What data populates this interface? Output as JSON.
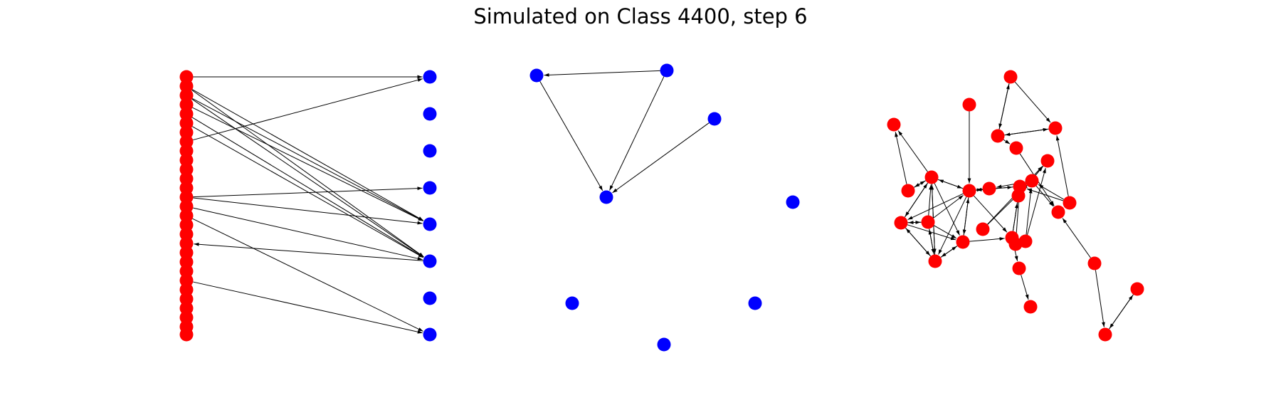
{
  "title": "Simulated on Class 4400, step 6",
  "colors": {
    "red": "#ff0000",
    "blue": "#0000ff",
    "edge": "#000000"
  },
  "panels": [
    {
      "name": "bipartite-graph",
      "nodes": [
        {
          "id": "L0",
          "p": [
            262,
            108
          ],
          "c": "red"
        },
        {
          "id": "L1",
          "p": [
            262,
            121
          ],
          "c": "red"
        },
        {
          "id": "L2",
          "p": [
            262,
            134
          ],
          "c": "red"
        },
        {
          "id": "L3",
          "p": [
            262,
            147
          ],
          "c": "red"
        },
        {
          "id": "L4",
          "p": [
            262,
            160
          ],
          "c": "red"
        },
        {
          "id": "L5",
          "p": [
            262,
            173
          ],
          "c": "red"
        },
        {
          "id": "L6",
          "p": [
            262,
            186
          ],
          "c": "red"
        },
        {
          "id": "L7",
          "p": [
            262,
            199
          ],
          "c": "red"
        },
        {
          "id": "L8",
          "p": [
            262,
            212
          ],
          "c": "red"
        },
        {
          "id": "L9",
          "p": [
            262,
            225
          ],
          "c": "red"
        },
        {
          "id": "L10",
          "p": [
            262,
            238
          ],
          "c": "red"
        },
        {
          "id": "L11",
          "p": [
            262,
            251
          ],
          "c": "red"
        },
        {
          "id": "L12",
          "p": [
            262,
            264
          ],
          "c": "red"
        },
        {
          "id": "L13",
          "p": [
            262,
            277
          ],
          "c": "red"
        },
        {
          "id": "L14",
          "p": [
            262,
            290
          ],
          "c": "red"
        },
        {
          "id": "L15",
          "p": [
            262,
            303
          ],
          "c": "red"
        },
        {
          "id": "L16",
          "p": [
            262,
            316
          ],
          "c": "red"
        },
        {
          "id": "L17",
          "p": [
            262,
            329
          ],
          "c": "red"
        },
        {
          "id": "L18",
          "p": [
            262,
            342
          ],
          "c": "red"
        },
        {
          "id": "L19",
          "p": [
            262,
            355
          ],
          "c": "red"
        },
        {
          "id": "L20",
          "p": [
            262,
            368
          ],
          "c": "red"
        },
        {
          "id": "L21",
          "p": [
            262,
            381
          ],
          "c": "red"
        },
        {
          "id": "L22",
          "p": [
            262,
            394
          ],
          "c": "red"
        },
        {
          "id": "L23",
          "p": [
            262,
            407
          ],
          "c": "red"
        },
        {
          "id": "L24",
          "p": [
            262,
            420
          ],
          "c": "red"
        },
        {
          "id": "L25",
          "p": [
            262,
            433
          ],
          "c": "red"
        },
        {
          "id": "L26",
          "p": [
            262,
            446
          ],
          "c": "red"
        },
        {
          "id": "L27",
          "p": [
            262,
            459
          ],
          "c": "red"
        },
        {
          "id": "L28",
          "p": [
            262,
            470
          ],
          "c": "red"
        },
        {
          "id": "R0",
          "p": [
            604,
            108
          ],
          "c": "blue"
        },
        {
          "id": "R1",
          "p": [
            604,
            160
          ],
          "c": "blue"
        },
        {
          "id": "R2",
          "p": [
            604,
            212
          ],
          "c": "blue"
        },
        {
          "id": "R3",
          "p": [
            604,
            264
          ],
          "c": "blue"
        },
        {
          "id": "R4",
          "p": [
            604,
            315
          ],
          "c": "blue"
        },
        {
          "id": "R5",
          "p": [
            604,
            367
          ],
          "c": "blue"
        },
        {
          "id": "R6",
          "p": [
            604,
            419
          ],
          "c": "blue"
        },
        {
          "id": "R7",
          "p": [
            604,
            470
          ],
          "c": "blue"
        }
      ],
      "edges": [
        [
          "L0",
          "R0"
        ],
        [
          "L7",
          "R0"
        ],
        [
          "L1",
          "R4"
        ],
        [
          "L2",
          "R4"
        ],
        [
          "L3",
          "R4"
        ],
        [
          "L1",
          "R5"
        ],
        [
          "L2",
          "R5"
        ],
        [
          "L4",
          "R5"
        ],
        [
          "L5",
          "R5"
        ],
        [
          "L13",
          "R3"
        ],
        [
          "L13",
          "R4"
        ],
        [
          "L14",
          "R5"
        ],
        [
          "L15",
          "R7"
        ],
        [
          "R5",
          "L18"
        ],
        [
          "L22",
          "R7"
        ]
      ]
    },
    {
      "name": "blue-graph",
      "nodes": [
        {
          "id": "B0",
          "p": [
            754,
            106
          ],
          "c": "blue"
        },
        {
          "id": "B1",
          "p": [
            937,
            99
          ],
          "c": "blue"
        },
        {
          "id": "B2",
          "p": [
            1004,
            167
          ],
          "c": "blue"
        },
        {
          "id": "B3",
          "p": [
            852,
            277
          ],
          "c": "blue"
        },
        {
          "id": "B4",
          "p": [
            1114,
            284
          ],
          "c": "blue"
        },
        {
          "id": "B5",
          "p": [
            804,
            426
          ],
          "c": "blue"
        },
        {
          "id": "B6",
          "p": [
            1061,
            426
          ],
          "c": "blue"
        },
        {
          "id": "B7",
          "p": [
            933,
            484
          ],
          "c": "blue"
        }
      ],
      "edges": [
        [
          "B1",
          "B0"
        ],
        [
          "B0",
          "B3"
        ],
        [
          "B1",
          "B3"
        ],
        [
          "B2",
          "B3"
        ]
      ]
    },
    {
      "name": "red-graph",
      "nodes": [
        {
          "id": "N0",
          "p": [
            1420,
            108
          ],
          "c": "red"
        },
        {
          "id": "N1",
          "p": [
            1362,
            147
          ],
          "c": "red"
        },
        {
          "id": "N2",
          "p": [
            1483,
            180
          ],
          "c": "red"
        },
        {
          "id": "N3",
          "p": [
            1256,
            175
          ],
          "c": "red"
        },
        {
          "id": "N4",
          "p": [
            1402,
            191
          ],
          "c": "red"
        },
        {
          "id": "N5",
          "p": [
            1428,
            208
          ],
          "c": "red"
        },
        {
          "id": "N6",
          "p": [
            1472,
            226
          ],
          "c": "red"
        },
        {
          "id": "N7",
          "p": [
            1309,
            249
          ],
          "c": "red"
        },
        {
          "id": "N8",
          "p": [
            1450,
            254
          ],
          "c": "red"
        },
        {
          "id": "N9",
          "p": [
            1276,
            268
          ],
          "c": "red"
        },
        {
          "id": "N10",
          "p": [
            1362,
            268
          ],
          "c": "red"
        },
        {
          "id": "N11",
          "p": [
            1390,
            265
          ],
          "c": "red"
        },
        {
          "id": "N12",
          "p": [
            1433,
            262
          ],
          "c": "red"
        },
        {
          "id": "N13",
          "p": [
            1431,
            275
          ],
          "c": "red"
        },
        {
          "id": "N14",
          "p": [
            1503,
            285
          ],
          "c": "red"
        },
        {
          "id": "N15",
          "p": [
            1487,
            298
          ],
          "c": "red"
        },
        {
          "id": "N16",
          "p": [
            1266,
            313
          ],
          "c": "red"
        },
        {
          "id": "N17",
          "p": [
            1304,
            312
          ],
          "c": "red"
        },
        {
          "id": "N18",
          "p": [
            1381,
            322
          ],
          "c": "red"
        },
        {
          "id": "N19",
          "p": [
            1422,
            334
          ],
          "c": "red"
        },
        {
          "id": "N20",
          "p": [
            1353,
            340
          ],
          "c": "red"
        },
        {
          "id": "N21",
          "p": [
            1427,
            343
          ],
          "c": "red"
        },
        {
          "id": "N22",
          "p": [
            1441,
            339
          ],
          "c": "red"
        },
        {
          "id": "N23",
          "p": [
            1314,
            367
          ],
          "c": "red"
        },
        {
          "id": "N24",
          "p": [
            1432,
            377
          ],
          "c": "red"
        },
        {
          "id": "N25",
          "p": [
            1538,
            370
          ],
          "c": "red"
        },
        {
          "id": "N26",
          "p": [
            1598,
            406
          ],
          "c": "red"
        },
        {
          "id": "N27",
          "p": [
            1448,
            431
          ],
          "c": "red"
        },
        {
          "id": "N28",
          "p": [
            1553,
            470
          ],
          "c": "red"
        }
      ],
      "edges": [
        [
          "N0",
          "N2"
        ],
        [
          "N0",
          "N4"
        ],
        [
          "N4",
          "N0"
        ],
        [
          "N4",
          "N2"
        ],
        [
          "N2",
          "N4"
        ],
        [
          "N1",
          "N10"
        ],
        [
          "N7",
          "N3"
        ],
        [
          "N8",
          "N15"
        ],
        [
          "N6",
          "N13"
        ],
        [
          "N13",
          "N6"
        ],
        [
          "N11",
          "N10"
        ],
        [
          "N10",
          "N11"
        ],
        [
          "N10",
          "N12"
        ],
        [
          "N12",
          "N10"
        ],
        [
          "N7",
          "N9"
        ],
        [
          "N9",
          "N7"
        ],
        [
          "N7",
          "N16"
        ],
        [
          "N16",
          "N7"
        ],
        [
          "N7",
          "N23"
        ],
        [
          "N23",
          "N7"
        ],
        [
          "N7",
          "N20"
        ],
        [
          "N7",
          "N10"
        ],
        [
          "N10",
          "N7"
        ],
        [
          "N17",
          "N7"
        ],
        [
          "N16",
          "N17"
        ],
        [
          "N17",
          "N16"
        ],
        [
          "N16",
          "N23"
        ],
        [
          "N23",
          "N16"
        ],
        [
          "N16",
          "N20"
        ],
        [
          "N17",
          "N20"
        ],
        [
          "N17",
          "N23"
        ],
        [
          "N23",
          "N17"
        ],
        [
          "N23",
          "N20"
        ],
        [
          "N20",
          "N23"
        ],
        [
          "N20",
          "N10"
        ],
        [
          "N10",
          "N20"
        ],
        [
          "N10",
          "N16"
        ],
        [
          "N10",
          "N23"
        ],
        [
          "N17",
          "N10"
        ],
        [
          "N18",
          "N6"
        ],
        [
          "N18",
          "N8"
        ],
        [
          "N19",
          "N12"
        ],
        [
          "N21",
          "N12"
        ],
        [
          "N22",
          "N8"
        ],
        [
          "N22",
          "N6"
        ],
        [
          "N19",
          "N24"
        ],
        [
          "N24",
          "N27"
        ],
        [
          "N10",
          "N19"
        ],
        [
          "N19",
          "N13"
        ],
        [
          "N14",
          "N12"
        ],
        [
          "N14",
          "N2"
        ],
        [
          "N14",
          "N8"
        ],
        [
          "N25",
          "N15"
        ],
        [
          "N25",
          "N28"
        ],
        [
          "N28",
          "N26"
        ],
        [
          "N26",
          "N28"
        ],
        [
          "N8",
          "N11"
        ],
        [
          "N8",
          "N12"
        ],
        [
          "N4",
          "N5"
        ],
        [
          "N5",
          "N15"
        ],
        [
          "N20",
          "N19"
        ],
        [
          "N9",
          "N3"
        ]
      ]
    }
  ]
}
